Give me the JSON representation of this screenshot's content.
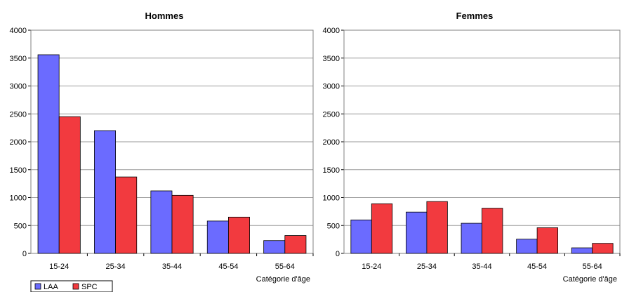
{
  "legend": [
    {
      "name": "LAA",
      "color": "#6b6bff"
    },
    {
      "name": "SPC",
      "color": "#f23a3f"
    }
  ],
  "chart_data": [
    {
      "type": "bar",
      "title": "Hommes",
      "xlabel": "Catégorie d'âge",
      "ylabel": "",
      "ylim": [
        0,
        4000
      ],
      "yticks": [
        0,
        500,
        1000,
        1500,
        2000,
        2500,
        3000,
        3500,
        4000
      ],
      "categories": [
        "15-24",
        "25-34",
        "35-44",
        "45-54",
        "55-64"
      ],
      "grid": true,
      "legend_position": "bottom-left",
      "series": [
        {
          "name": "LAA",
          "color": "#6b6bff",
          "values": [
            3560,
            2200,
            1120,
            580,
            230
          ]
        },
        {
          "name": "SPC",
          "color": "#f23a3f",
          "values": [
            2450,
            1370,
            1040,
            650,
            320
          ]
        }
      ]
    },
    {
      "type": "bar",
      "title": "Femmes",
      "xlabel": "Catégorie d'âge",
      "ylabel": "",
      "ylim": [
        0,
        4000
      ],
      "yticks": [
        0,
        500,
        1000,
        1500,
        2000,
        2500,
        3000,
        3500,
        4000
      ],
      "categories": [
        "15-24",
        "25-34",
        "35-44",
        "45-54",
        "55-64"
      ],
      "grid": true,
      "series": [
        {
          "name": "LAA",
          "color": "#6b6bff",
          "values": [
            600,
            740,
            540,
            255,
            100
          ]
        },
        {
          "name": "SPC",
          "color": "#f23a3f",
          "values": [
            890,
            930,
            810,
            460,
            180
          ]
        }
      ]
    }
  ]
}
